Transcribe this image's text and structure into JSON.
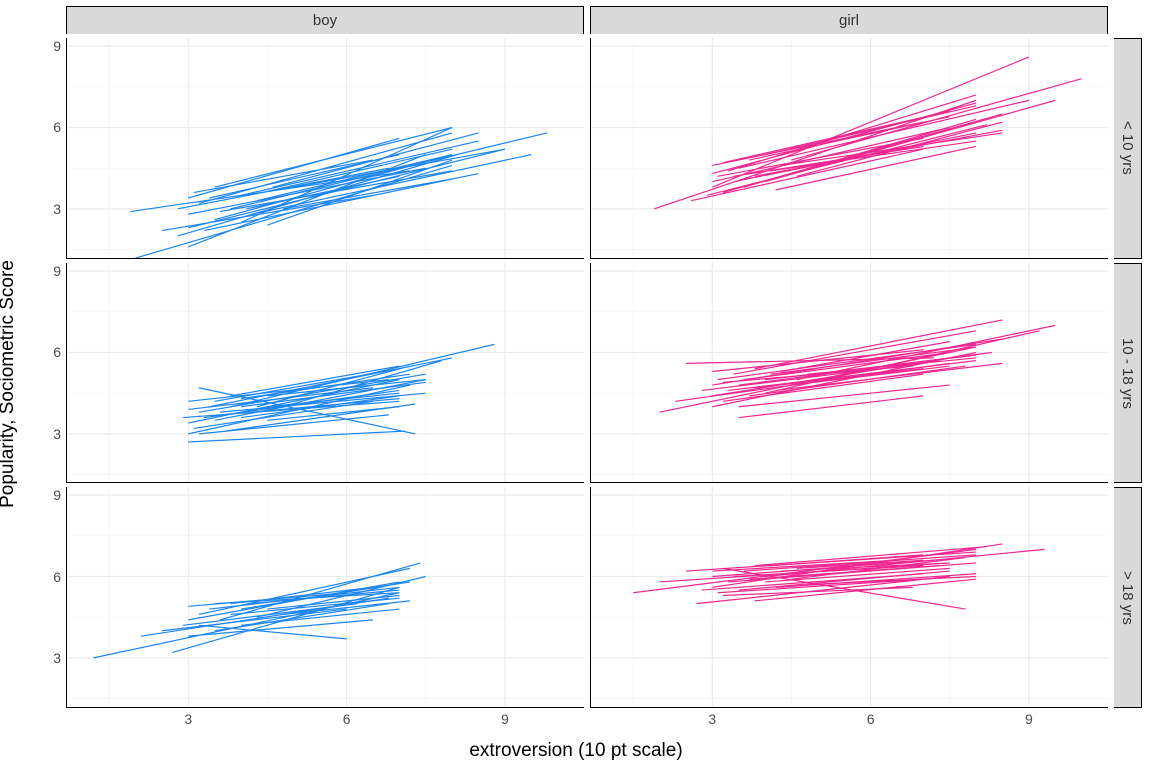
{
  "chart": {
    "type": "facet-line",
    "xlabel": "extroversion (10 pt scale)",
    "ylabel": "Popularity, Sociometric Score",
    "xlim": [
      0.7,
      10.5
    ],
    "ylim": [
      1.2,
      9.3
    ],
    "xticks": [
      3,
      6,
      9
    ],
    "yticks": [
      3,
      6,
      9
    ],
    "background_color": "#ffffff",
    "strip_bg": "#d9d9d9",
    "grid_major_color": "#ebebeb",
    "grid_minor_color": "#f5f5f5",
    "axis_text_color": "#4d4d4d",
    "label_fontsize": 19,
    "tick_fontsize": 14,
    "strip_fontsize": 15,
    "line_width": 1.2,
    "cols": [
      {
        "key": "boy",
        "label": "boy",
        "color": "#1c86ee"
      },
      {
        "key": "girl",
        "label": "girl",
        "color": "#ee2790"
      }
    ],
    "rows": [
      {
        "key": "lt10",
        "label": "< 10 yrs"
      },
      {
        "key": "1018",
        "label": "10 - 18 yrs"
      },
      {
        "key": "gt18",
        "label": "> 18 yrs"
      }
    ],
    "panels": {
      "boy|lt10": {
        "lines": [
          {
            "x1": 1.5,
            "y1": 0.9,
            "x2": 8.0,
            "y2": 4.6
          },
          {
            "x1": 1.9,
            "y1": 2.9,
            "x2": 7.2,
            "y2": 4.4
          },
          {
            "x1": 2.8,
            "y1": 2.0,
            "x2": 8.1,
            "y2": 5.0
          },
          {
            "x1": 3.0,
            "y1": 2.3,
            "x2": 9.0,
            "y2": 5.2
          },
          {
            "x1": 3.0,
            "y1": 2.8,
            "x2": 7.5,
            "y2": 4.5
          },
          {
            "x1": 3.0,
            "y1": 1.6,
            "x2": 7.5,
            "y2": 5.0
          },
          {
            "x1": 3.2,
            "y1": 3.2,
            "x2": 8.0,
            "y2": 5.8
          },
          {
            "x1": 3.3,
            "y1": 2.2,
            "x2": 8.5,
            "y2": 4.3
          },
          {
            "x1": 3.4,
            "y1": 3.4,
            "x2": 7.0,
            "y2": 5.0
          },
          {
            "x1": 3.5,
            "y1": 2.6,
            "x2": 7.8,
            "y2": 4.9
          },
          {
            "x1": 3.5,
            "y1": 3.8,
            "x2": 8.0,
            "y2": 6.0
          },
          {
            "x1": 3.6,
            "y1": 2.9,
            "x2": 8.0,
            "y2": 4.4
          },
          {
            "x1": 3.8,
            "y1": 3.0,
            "x2": 9.8,
            "y2": 5.8
          },
          {
            "x1": 4.0,
            "y1": 2.5,
            "x2": 8.0,
            "y2": 6.0
          },
          {
            "x1": 4.0,
            "y1": 3.5,
            "x2": 8.5,
            "y2": 5.5
          },
          {
            "x1": 4.1,
            "y1": 3.0,
            "x2": 7.0,
            "y2": 4.2
          },
          {
            "x1": 4.2,
            "y1": 2.8,
            "x2": 9.5,
            "y2": 5.0
          },
          {
            "x1": 4.3,
            "y1": 3.3,
            "x2": 8.0,
            "y2": 5.0
          },
          {
            "x1": 4.4,
            "y1": 3.6,
            "x2": 8.0,
            "y2": 5.2
          },
          {
            "x1": 4.5,
            "y1": 2.4,
            "x2": 8.0,
            "y2": 4.8
          },
          {
            "x1": 4.6,
            "y1": 3.8,
            "x2": 8.5,
            "y2": 5.8
          },
          {
            "x1": 4.8,
            "y1": 3.0,
            "x2": 8.0,
            "y2": 4.1
          },
          {
            "x1": 2.5,
            "y1": 2.2,
            "x2": 6.5,
            "y2": 3.5
          },
          {
            "x1": 2.8,
            "y1": 3.0,
            "x2": 6.8,
            "y2": 4.5
          },
          {
            "x1": 3.1,
            "y1": 3.6,
            "x2": 6.5,
            "y2": 4.8
          },
          {
            "x1": 5.0,
            "y1": 3.8,
            "x2": 9.0,
            "y2": 5.2
          },
          {
            "x1": 3.0,
            "y1": 3.4,
            "x2": 7.0,
            "y2": 5.6
          }
        ]
      },
      "girl|lt10": {
        "lines": [
          {
            "x1": 1.9,
            "y1": 3.0,
            "x2": 8.0,
            "y2": 7.0
          },
          {
            "x1": 2.9,
            "y1": 3.5,
            "x2": 8.2,
            "y2": 6.1
          },
          {
            "x1": 3.0,
            "y1": 3.8,
            "x2": 9.0,
            "y2": 8.6
          },
          {
            "x1": 3.0,
            "y1": 4.0,
            "x2": 7.5,
            "y2": 6.0
          },
          {
            "x1": 3.1,
            "y1": 4.2,
            "x2": 7.0,
            "y2": 5.6
          },
          {
            "x1": 3.2,
            "y1": 3.6,
            "x2": 8.5,
            "y2": 6.5
          },
          {
            "x1": 3.3,
            "y1": 4.4,
            "x2": 8.0,
            "y2": 7.2
          },
          {
            "x1": 3.4,
            "y1": 4.0,
            "x2": 8.0,
            "y2": 5.8
          },
          {
            "x1": 3.5,
            "y1": 4.5,
            "x2": 9.0,
            "y2": 7.0
          },
          {
            "x1": 3.6,
            "y1": 3.8,
            "x2": 8.0,
            "y2": 6.3
          },
          {
            "x1": 3.7,
            "y1": 4.8,
            "x2": 7.5,
            "y2": 6.4
          },
          {
            "x1": 3.8,
            "y1": 4.2,
            "x2": 8.5,
            "y2": 5.9
          },
          {
            "x1": 4.0,
            "y1": 4.0,
            "x2": 9.5,
            "y2": 7.0
          },
          {
            "x1": 4.0,
            "y1": 5.0,
            "x2": 8.0,
            "y2": 6.8
          },
          {
            "x1": 4.1,
            "y1": 4.4,
            "x2": 8.0,
            "y2": 5.5
          },
          {
            "x1": 4.2,
            "y1": 3.7,
            "x2": 8.0,
            "y2": 5.3
          },
          {
            "x1": 4.3,
            "y1": 4.6,
            "x2": 8.5,
            "y2": 5.8
          },
          {
            "x1": 4.5,
            "y1": 4.8,
            "x2": 10.0,
            "y2": 7.8
          },
          {
            "x1": 4.6,
            "y1": 4.2,
            "x2": 8.5,
            "y2": 6.2
          },
          {
            "x1": 2.6,
            "y1": 3.3,
            "x2": 7.0,
            "y2": 5.2
          },
          {
            "x1": 3.0,
            "y1": 4.6,
            "x2": 7.0,
            "y2": 6.2
          },
          {
            "x1": 3.2,
            "y1": 4.7,
            "x2": 7.5,
            "y2": 6.6
          },
          {
            "x1": 3.4,
            "y1": 4.2,
            "x2": 7.0,
            "y2": 5.3
          },
          {
            "x1": 3.0,
            "y1": 4.3,
            "x2": 8.0,
            "y2": 6.9
          }
        ]
      },
      "boy|1018": {
        "lines": [
          {
            "x1": 2.9,
            "y1": 3.6,
            "x2": 7.0,
            "y2": 4.2
          },
          {
            "x1": 3.0,
            "y1": 3.0,
            "x2": 7.2,
            "y2": 4.8
          },
          {
            "x1": 3.0,
            "y1": 2.7,
            "x2": 7.1,
            "y2": 3.1
          },
          {
            "x1": 3.0,
            "y1": 3.4,
            "x2": 7.0,
            "y2": 5.0
          },
          {
            "x1": 3.1,
            "y1": 3.2,
            "x2": 6.5,
            "y2": 4.2
          },
          {
            "x1": 3.2,
            "y1": 3.8,
            "x2": 7.5,
            "y2": 5.2
          },
          {
            "x1": 3.2,
            "y1": 4.7,
            "x2": 7.3,
            "y2": 3.0
          },
          {
            "x1": 3.3,
            "y1": 3.6,
            "x2": 7.0,
            "y2": 4.6
          },
          {
            "x1": 3.4,
            "y1": 4.0,
            "x2": 8.0,
            "y2": 5.8
          },
          {
            "x1": 3.5,
            "y1": 3.5,
            "x2": 7.5,
            "y2": 5.0
          },
          {
            "x1": 3.5,
            "y1": 4.2,
            "x2": 7.0,
            "y2": 5.4
          },
          {
            "x1": 3.6,
            "y1": 3.8,
            "x2": 7.5,
            "y2": 4.5
          },
          {
            "x1": 3.7,
            "y1": 3.1,
            "x2": 7.3,
            "y2": 4.1
          },
          {
            "x1": 3.8,
            "y1": 4.0,
            "x2": 8.8,
            "y2": 6.3
          },
          {
            "x1": 3.8,
            "y1": 4.4,
            "x2": 7.0,
            "y2": 5.5
          },
          {
            "x1": 4.0,
            "y1": 3.6,
            "x2": 7.0,
            "y2": 4.4
          },
          {
            "x1": 4.0,
            "y1": 4.0,
            "x2": 7.5,
            "y2": 4.9
          },
          {
            "x1": 4.0,
            "y1": 4.3,
            "x2": 7.2,
            "y2": 5.2
          },
          {
            "x1": 4.2,
            "y1": 3.8,
            "x2": 7.0,
            "y2": 4.3
          },
          {
            "x1": 4.3,
            "y1": 4.0,
            "x2": 7.2,
            "y2": 5.5
          },
          {
            "x1": 4.5,
            "y1": 3.5,
            "x2": 7.0,
            "y2": 4.0
          },
          {
            "x1": 4.5,
            "y1": 4.4,
            "x2": 7.5,
            "y2": 5.0
          },
          {
            "x1": 4.8,
            "y1": 4.0,
            "x2": 7.8,
            "y2": 5.7
          },
          {
            "x1": 3.0,
            "y1": 3.9,
            "x2": 6.5,
            "y2": 4.7
          },
          {
            "x1": 3.0,
            "y1": 4.2,
            "x2": 6.8,
            "y2": 5.0
          },
          {
            "x1": 3.2,
            "y1": 3.0,
            "x2": 6.8,
            "y2": 3.7
          },
          {
            "x1": 4.5,
            "y1": 4.0,
            "x2": 7.0,
            "y2": 4.5
          }
        ]
      },
      "girl|1018": {
        "lines": [
          {
            "x1": 2.0,
            "y1": 3.8,
            "x2": 8.0,
            "y2": 6.2
          },
          {
            "x1": 2.3,
            "y1": 4.2,
            "x2": 7.5,
            "y2": 5.6
          },
          {
            "x1": 2.5,
            "y1": 5.6,
            "x2": 7.2,
            "y2": 5.8
          },
          {
            "x1": 3.0,
            "y1": 4.0,
            "x2": 8.0,
            "y2": 6.0
          },
          {
            "x1": 3.0,
            "y1": 4.4,
            "x2": 7.5,
            "y2": 5.8
          },
          {
            "x1": 3.0,
            "y1": 4.8,
            "x2": 8.5,
            "y2": 6.5
          },
          {
            "x1": 3.1,
            "y1": 5.0,
            "x2": 8.0,
            "y2": 6.3
          },
          {
            "x1": 3.2,
            "y1": 4.2,
            "x2": 7.0,
            "y2": 5.2
          },
          {
            "x1": 3.3,
            "y1": 4.6,
            "x2": 8.0,
            "y2": 5.7
          },
          {
            "x1": 3.4,
            "y1": 5.2,
            "x2": 8.0,
            "y2": 6.8
          },
          {
            "x1": 3.5,
            "y1": 4.0,
            "x2": 7.5,
            "y2": 4.8
          },
          {
            "x1": 3.5,
            "y1": 4.8,
            "x2": 8.3,
            "y2": 6.0
          },
          {
            "x1": 3.6,
            "y1": 5.0,
            "x2": 7.5,
            "y2": 6.0
          },
          {
            "x1": 3.7,
            "y1": 4.4,
            "x2": 7.8,
            "y2": 5.5
          },
          {
            "x1": 3.8,
            "y1": 5.4,
            "x2": 8.5,
            "y2": 7.2
          },
          {
            "x1": 3.8,
            "y1": 4.7,
            "x2": 7.0,
            "y2": 5.4
          },
          {
            "x1": 4.0,
            "y1": 4.5,
            "x2": 9.2,
            "y2": 6.8
          },
          {
            "x1": 4.0,
            "y1": 5.0,
            "x2": 8.0,
            "y2": 5.9
          },
          {
            "x1": 4.1,
            "y1": 5.2,
            "x2": 8.0,
            "y2": 6.2
          },
          {
            "x1": 4.2,
            "y1": 4.6,
            "x2": 8.5,
            "y2": 5.6
          },
          {
            "x1": 4.3,
            "y1": 5.3,
            "x2": 7.5,
            "y2": 6.4
          },
          {
            "x1": 4.5,
            "y1": 4.8,
            "x2": 7.5,
            "y2": 5.5
          },
          {
            "x1": 4.6,
            "y1": 5.0,
            "x2": 9.5,
            "y2": 7.0
          },
          {
            "x1": 4.8,
            "y1": 5.2,
            "x2": 8.0,
            "y2": 5.8
          },
          {
            "x1": 2.8,
            "y1": 4.6,
            "x2": 7.0,
            "y2": 5.6
          },
          {
            "x1": 3.0,
            "y1": 5.3,
            "x2": 7.0,
            "y2": 6.1
          },
          {
            "x1": 3.2,
            "y1": 4.9,
            "x2": 6.8,
            "y2": 5.5
          },
          {
            "x1": 3.5,
            "y1": 3.6,
            "x2": 7.0,
            "y2": 4.4
          }
        ]
      },
      "boy|gt18": {
        "lines": [
          {
            "x1": 1.2,
            "y1": 3.0,
            "x2": 7.0,
            "y2": 5.4
          },
          {
            "x1": 2.1,
            "y1": 3.8,
            "x2": 6.8,
            "y2": 5.2
          },
          {
            "x1": 2.5,
            "y1": 4.0,
            "x2": 6.0,
            "y2": 4.8
          },
          {
            "x1": 2.7,
            "y1": 3.2,
            "x2": 7.0,
            "y2": 5.6
          },
          {
            "x1": 3.0,
            "y1": 4.4,
            "x2": 7.0,
            "y2": 5.8
          },
          {
            "x1": 3.0,
            "y1": 3.8,
            "x2": 6.5,
            "y2": 4.4
          },
          {
            "x1": 3.2,
            "y1": 4.2,
            "x2": 6.0,
            "y2": 3.7
          },
          {
            "x1": 3.2,
            "y1": 4.6,
            "x2": 7.2,
            "y2": 6.3
          },
          {
            "x1": 3.4,
            "y1": 4.8,
            "x2": 7.0,
            "y2": 5.6
          },
          {
            "x1": 3.5,
            "y1": 4.0,
            "x2": 6.8,
            "y2": 5.0
          },
          {
            "x1": 3.5,
            "y1": 5.0,
            "x2": 7.0,
            "y2": 5.4
          },
          {
            "x1": 3.6,
            "y1": 4.4,
            "x2": 7.4,
            "y2": 6.5
          },
          {
            "x1": 3.8,
            "y1": 4.6,
            "x2": 7.0,
            "y2": 5.2
          },
          {
            "x1": 3.8,
            "y1": 5.0,
            "x2": 6.5,
            "y2": 5.6
          },
          {
            "x1": 4.0,
            "y1": 4.2,
            "x2": 7.0,
            "y2": 4.8
          },
          {
            "x1": 4.0,
            "y1": 4.8,
            "x2": 7.2,
            "y2": 5.8
          },
          {
            "x1": 4.2,
            "y1": 5.0,
            "x2": 7.0,
            "y2": 5.5
          },
          {
            "x1": 4.3,
            "y1": 4.5,
            "x2": 7.5,
            "y2": 6.0
          },
          {
            "x1": 4.5,
            "y1": 4.8,
            "x2": 7.0,
            "y2": 5.3
          },
          {
            "x1": 4.8,
            "y1": 4.6,
            "x2": 7.2,
            "y2": 5.1
          },
          {
            "x1": 2.9,
            "y1": 4.2,
            "x2": 6.2,
            "y2": 5.0
          },
          {
            "x1": 3.0,
            "y1": 4.9,
            "x2": 6.0,
            "y2": 5.4
          }
        ]
      },
      "girl|gt18": {
        "lines": [
          {
            "x1": 1.5,
            "y1": 5.4,
            "x2": 8.0,
            "y2": 7.0
          },
          {
            "x1": 2.0,
            "y1": 5.8,
            "x2": 7.5,
            "y2": 6.5
          },
          {
            "x1": 2.5,
            "y1": 6.2,
            "x2": 8.0,
            "y2": 6.9
          },
          {
            "x1": 2.7,
            "y1": 5.0,
            "x2": 7.5,
            "y2": 6.0
          },
          {
            "x1": 3.0,
            "y1": 5.6,
            "x2": 8.5,
            "y2": 7.2
          },
          {
            "x1": 3.0,
            "y1": 6.0,
            "x2": 7.2,
            "y2": 6.6
          },
          {
            "x1": 3.1,
            "y1": 5.4,
            "x2": 7.0,
            "y2": 5.9
          },
          {
            "x1": 3.2,
            "y1": 6.3,
            "x2": 7.8,
            "y2": 4.8
          },
          {
            "x1": 3.3,
            "y1": 5.8,
            "x2": 8.0,
            "y2": 6.5
          },
          {
            "x1": 3.4,
            "y1": 6.0,
            "x2": 7.0,
            "y2": 6.4
          },
          {
            "x1": 3.5,
            "y1": 5.5,
            "x2": 7.5,
            "y2": 6.2
          },
          {
            "x1": 3.6,
            "y1": 6.2,
            "x2": 8.0,
            "y2": 6.8
          },
          {
            "x1": 3.7,
            "y1": 5.9,
            "x2": 7.3,
            "y2": 6.4
          },
          {
            "x1": 3.8,
            "y1": 6.4,
            "x2": 8.2,
            "y2": 7.1
          },
          {
            "x1": 3.8,
            "y1": 5.1,
            "x2": 8.0,
            "y2": 5.9
          },
          {
            "x1": 4.0,
            "y1": 5.8,
            "x2": 7.5,
            "y2": 6.3
          },
          {
            "x1": 4.0,
            "y1": 6.0,
            "x2": 9.3,
            "y2": 7.0
          },
          {
            "x1": 4.1,
            "y1": 6.4,
            "x2": 7.0,
            "y2": 6.8
          },
          {
            "x1": 4.2,
            "y1": 5.6,
            "x2": 8.0,
            "y2": 6.1
          },
          {
            "x1": 4.3,
            "y1": 6.2,
            "x2": 7.5,
            "y2": 6.5
          },
          {
            "x1": 4.5,
            "y1": 5.9,
            "x2": 7.8,
            "y2": 6.7
          },
          {
            "x1": 4.6,
            "y1": 6.3,
            "x2": 7.0,
            "y2": 6.6
          },
          {
            "x1": 4.8,
            "y1": 5.7,
            "x2": 8.0,
            "y2": 6.0
          },
          {
            "x1": 2.8,
            "y1": 5.5,
            "x2": 7.0,
            "y2": 6.1
          },
          {
            "x1": 3.0,
            "y1": 6.2,
            "x2": 6.5,
            "y2": 6.6
          },
          {
            "x1": 3.2,
            "y1": 5.3,
            "x2": 6.8,
            "y2": 5.6
          }
        ]
      }
    }
  }
}
